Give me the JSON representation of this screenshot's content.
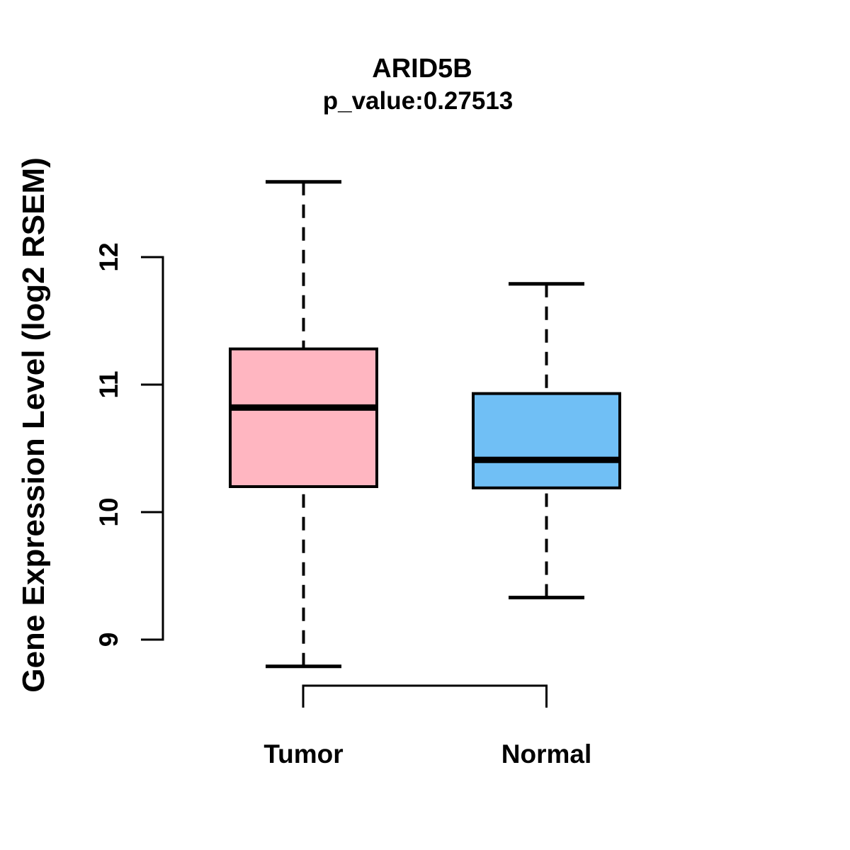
{
  "chart_data": {
    "type": "boxplot",
    "title": "ARID5B",
    "subtitle": "p_value:0.27513",
    "ylabel": "Gene Expression Level (log2 RSEM)",
    "xlabel": "",
    "categories": [
      "Tumor",
      "Normal"
    ],
    "y_ticks": [
      "9",
      "10",
      "11",
      "12"
    ],
    "y_tick_values": [
      9,
      10,
      11,
      12
    ],
    "y_axis_shown_range": [
      9,
      12
    ],
    "ylim": [
      8.6,
      12.75
    ],
    "grid": false,
    "legend_position": "none",
    "box_border_color": "#000000",
    "whisker_style": "dashed",
    "series": [
      {
        "name": "Tumor",
        "fill_color": "#FFB6C1",
        "whisker_low": 8.79,
        "q1": 10.2,
        "median": 10.82,
        "q3": 11.28,
        "whisker_high": 12.59
      },
      {
        "name": "Normal",
        "fill_color": "#70BFF5",
        "whisker_low": 9.33,
        "q1": 10.19,
        "median": 10.41,
        "q3": 10.93,
        "whisker_high": 11.79
      }
    ]
  }
}
